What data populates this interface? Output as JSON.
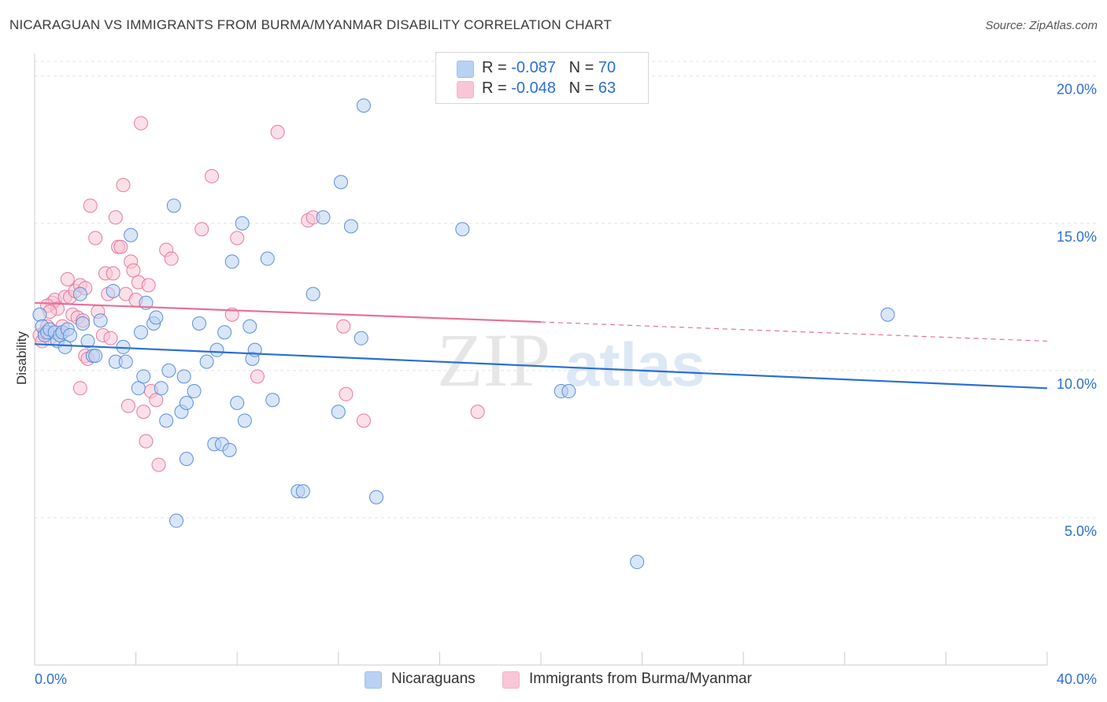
{
  "title": "NICARAGUAN VS IMMIGRANTS FROM BURMA/MYANMAR DISABILITY CORRELATION CHART",
  "source": "Source: ZipAtlas.com",
  "watermark": {
    "zip": "ZIP",
    "atlas": "atlas"
  },
  "legend": {
    "rows": [
      {
        "r_label": "R = ",
        "r_value": "-0.087",
        "n_label": "N = ",
        "n_value": "70",
        "color": "#9dc0ee"
      },
      {
        "r_label": "R = ",
        "r_value": "-0.048",
        "n_label": "N = ",
        "n_value": "63",
        "color": "#f5b3c8"
      }
    ]
  },
  "bottom_legend": [
    {
      "label": "Nicaraguans",
      "color": "#b9d2f3"
    },
    {
      "label": "Immigrants from Burma/Myanmar",
      "color": "#f8c6d6"
    }
  ],
  "chart_data": {
    "type": "scatter",
    "title": "NICARAGUAN VS IMMIGRANTS FROM BURMA/MYANMAR DISABILITY CORRELATION CHART",
    "xlabel": "",
    "ylabel": "Disability",
    "xlim": [
      0,
      40
    ],
    "ylim": [
      0,
      20.5
    ],
    "x_tick_labels": [
      "0.0%",
      "40.0%"
    ],
    "y_ticks": [
      5,
      10,
      15,
      20
    ],
    "y_tick_labels": [
      "5.0%",
      "10.0%",
      "15.0%",
      "20.0%"
    ],
    "grid": true,
    "legend_position": "top-center",
    "series": [
      {
        "name": "Nicaraguans",
        "color": "#5b8fd9",
        "fill": "#b9d2f3",
        "trend": {
          "x": [
            0,
            40
          ],
          "y": [
            10.9,
            9.4
          ],
          "style": "solid"
        },
        "points": [
          [
            0.2,
            11.9
          ],
          [
            0.3,
            11.5
          ],
          [
            0.4,
            11.2
          ],
          [
            0.5,
            11.3
          ],
          [
            0.6,
            11.4
          ],
          [
            0.8,
            11.3
          ],
          [
            0.9,
            11.0
          ],
          [
            1.0,
            11.2
          ],
          [
            1.1,
            11.3
          ],
          [
            1.3,
            11.4
          ],
          [
            1.4,
            11.2
          ],
          [
            1.2,
            10.8
          ],
          [
            1.8,
            12.6
          ],
          [
            1.9,
            11.6
          ],
          [
            2.1,
            11.0
          ],
          [
            2.3,
            10.5
          ],
          [
            2.4,
            10.5
          ],
          [
            2.6,
            11.7
          ],
          [
            3.1,
            12.7
          ],
          [
            3.2,
            10.3
          ],
          [
            3.5,
            10.8
          ],
          [
            3.6,
            10.3
          ],
          [
            3.8,
            14.6
          ],
          [
            4.1,
            9.4
          ],
          [
            4.2,
            11.3
          ],
          [
            4.3,
            9.8
          ],
          [
            4.4,
            12.3
          ],
          [
            4.7,
            11.6
          ],
          [
            4.8,
            11.8
          ],
          [
            5.0,
            9.4
          ],
          [
            5.2,
            8.3
          ],
          [
            5.3,
            10.0
          ],
          [
            5.5,
            15.6
          ],
          [
            5.8,
            8.6
          ],
          [
            5.9,
            9.8
          ],
          [
            6.0,
            8.9
          ],
          [
            6.0,
            7.0
          ],
          [
            6.3,
            9.3
          ],
          [
            5.6,
            4.9
          ],
          [
            6.5,
            11.6
          ],
          [
            6.8,
            10.3
          ],
          [
            7.1,
            7.5
          ],
          [
            7.4,
            7.5
          ],
          [
            7.2,
            10.7
          ],
          [
            7.5,
            11.3
          ],
          [
            7.7,
            7.3
          ],
          [
            7.8,
            13.7
          ],
          [
            8.0,
            8.9
          ],
          [
            8.2,
            15.0
          ],
          [
            8.3,
            8.3
          ],
          [
            8.5,
            11.5
          ],
          [
            8.6,
            10.4
          ],
          [
            8.7,
            10.7
          ],
          [
            9.2,
            13.8
          ],
          [
            9.4,
            9.0
          ],
          [
            10.4,
            5.9
          ],
          [
            10.6,
            5.9
          ],
          [
            11.0,
            12.6
          ],
          [
            11.4,
            15.2
          ],
          [
            12.0,
            8.6
          ],
          [
            12.1,
            16.4
          ],
          [
            12.5,
            14.9
          ],
          [
            12.9,
            11.1
          ],
          [
            13.0,
            19.0
          ],
          [
            13.5,
            5.7
          ],
          [
            16.9,
            14.8
          ],
          [
            20.8,
            9.3
          ],
          [
            21.1,
            9.3
          ],
          [
            23.8,
            3.5
          ],
          [
            33.7,
            11.9
          ]
        ]
      },
      {
        "name": "Immigrants from Burma/Myanmar",
        "color": "#e8799d",
        "fill": "#f8c6d6",
        "trend": {
          "x": [
            0,
            40
          ],
          "y": [
            12.3,
            11.0
          ],
          "solid_until": 20,
          "style": "solid-then-dashed"
        },
        "points": [
          [
            0.2,
            11.2
          ],
          [
            0.3,
            11.0
          ],
          [
            0.4,
            11.3
          ],
          [
            0.5,
            11.5
          ],
          [
            0.6,
            11.1
          ],
          [
            0.7,
            12.3
          ],
          [
            0.8,
            12.4
          ],
          [
            0.9,
            12.1
          ],
          [
            1.0,
            11.2
          ],
          [
            1.1,
            11.5
          ],
          [
            1.2,
            12.5
          ],
          [
            1.4,
            12.5
          ],
          [
            1.3,
            13.1
          ],
          [
            1.5,
            11.9
          ],
          [
            1.6,
            12.7
          ],
          [
            1.7,
            11.8
          ],
          [
            1.8,
            12.9
          ],
          [
            1.9,
            11.7
          ],
          [
            2.0,
            12.8
          ],
          [
            1.8,
            9.4
          ],
          [
            2.0,
            10.5
          ],
          [
            2.1,
            10.4
          ],
          [
            2.2,
            15.6
          ],
          [
            2.4,
            14.5
          ],
          [
            2.5,
            12.0
          ],
          [
            2.7,
            11.2
          ],
          [
            2.8,
            13.3
          ],
          [
            2.9,
            12.6
          ],
          [
            3.0,
            11.1
          ],
          [
            3.1,
            13.3
          ],
          [
            3.2,
            15.2
          ],
          [
            3.3,
            14.2
          ],
          [
            3.4,
            14.2
          ],
          [
            3.5,
            16.3
          ],
          [
            3.6,
            12.6
          ],
          [
            3.7,
            8.8
          ],
          [
            3.8,
            13.7
          ],
          [
            3.9,
            13.4
          ],
          [
            4.0,
            12.4
          ],
          [
            4.1,
            13.0
          ],
          [
            4.2,
            18.4
          ],
          [
            4.3,
            8.6
          ],
          [
            4.4,
            7.6
          ],
          [
            4.5,
            12.9
          ],
          [
            4.6,
            9.3
          ],
          [
            4.8,
            9.0
          ],
          [
            4.9,
            6.8
          ],
          [
            5.2,
            14.1
          ],
          [
            5.4,
            13.8
          ],
          [
            6.6,
            14.8
          ],
          [
            7.0,
            16.6
          ],
          [
            7.8,
            11.9
          ],
          [
            8.0,
            14.5
          ],
          [
            8.8,
            9.8
          ],
          [
            9.6,
            18.1
          ],
          [
            10.8,
            15.1
          ],
          [
            11.0,
            15.2
          ],
          [
            12.3,
            9.2
          ],
          [
            12.2,
            11.5
          ],
          [
            13.0,
            8.3
          ],
          [
            17.5,
            8.6
          ],
          [
            0.5,
            12.2
          ],
          [
            0.6,
            12.0
          ]
        ]
      }
    ]
  }
}
